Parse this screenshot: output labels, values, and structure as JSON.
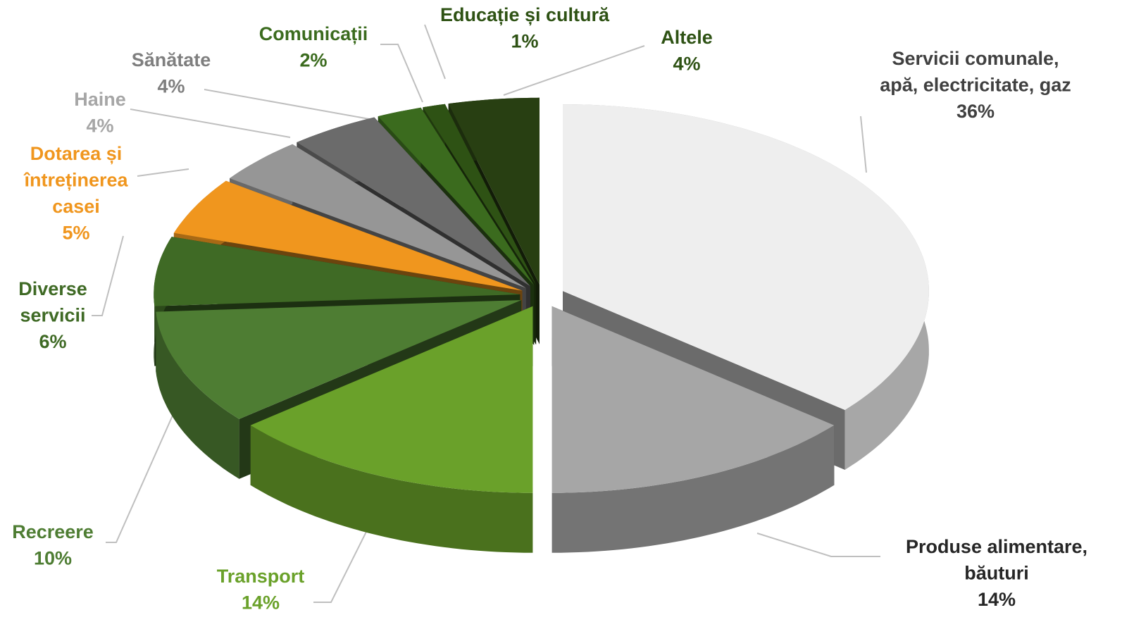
{
  "chart_data": {
    "type": "pie",
    "categories": [
      "Servicii comunale,\napă, electricitate, gaz",
      "Produse alimentare,\nbăuturi",
      "Transport",
      "Recreere",
      "Diverse\nservicii",
      "Dotarea și\nîntreținerea\ncasei",
      "Haine",
      "Sănătate",
      "Comunicații",
      "Educație și cultură",
      "Altele"
    ],
    "values": [
      36,
      14,
      14,
      10,
      6,
      5,
      4,
      4,
      2,
      1,
      4
    ],
    "value_labels": [
      "36%",
      "14%",
      "14%",
      "10%",
      "6%",
      "5%",
      "4%",
      "4%",
      "2%",
      "1%",
      "4%"
    ],
    "colors": [
      "#eeeeee",
      "#a6a6a6",
      "#6aa12a",
      "#4e7d33",
      "#3f6a25",
      "#f0961e",
      "#969696",
      "#6b6b6b",
      "#3b6b1e",
      "#2e5214",
      "#283f12"
    ],
    "label_colors": [
      "#404040",
      "#262626",
      "#6aa12a",
      "#4e7d33",
      "#3f6a25",
      "#f0961e",
      "#a6a6a6",
      "#7f7f7f",
      "#3b6b1e",
      "#2e5214",
      "#2e5214"
    ]
  }
}
